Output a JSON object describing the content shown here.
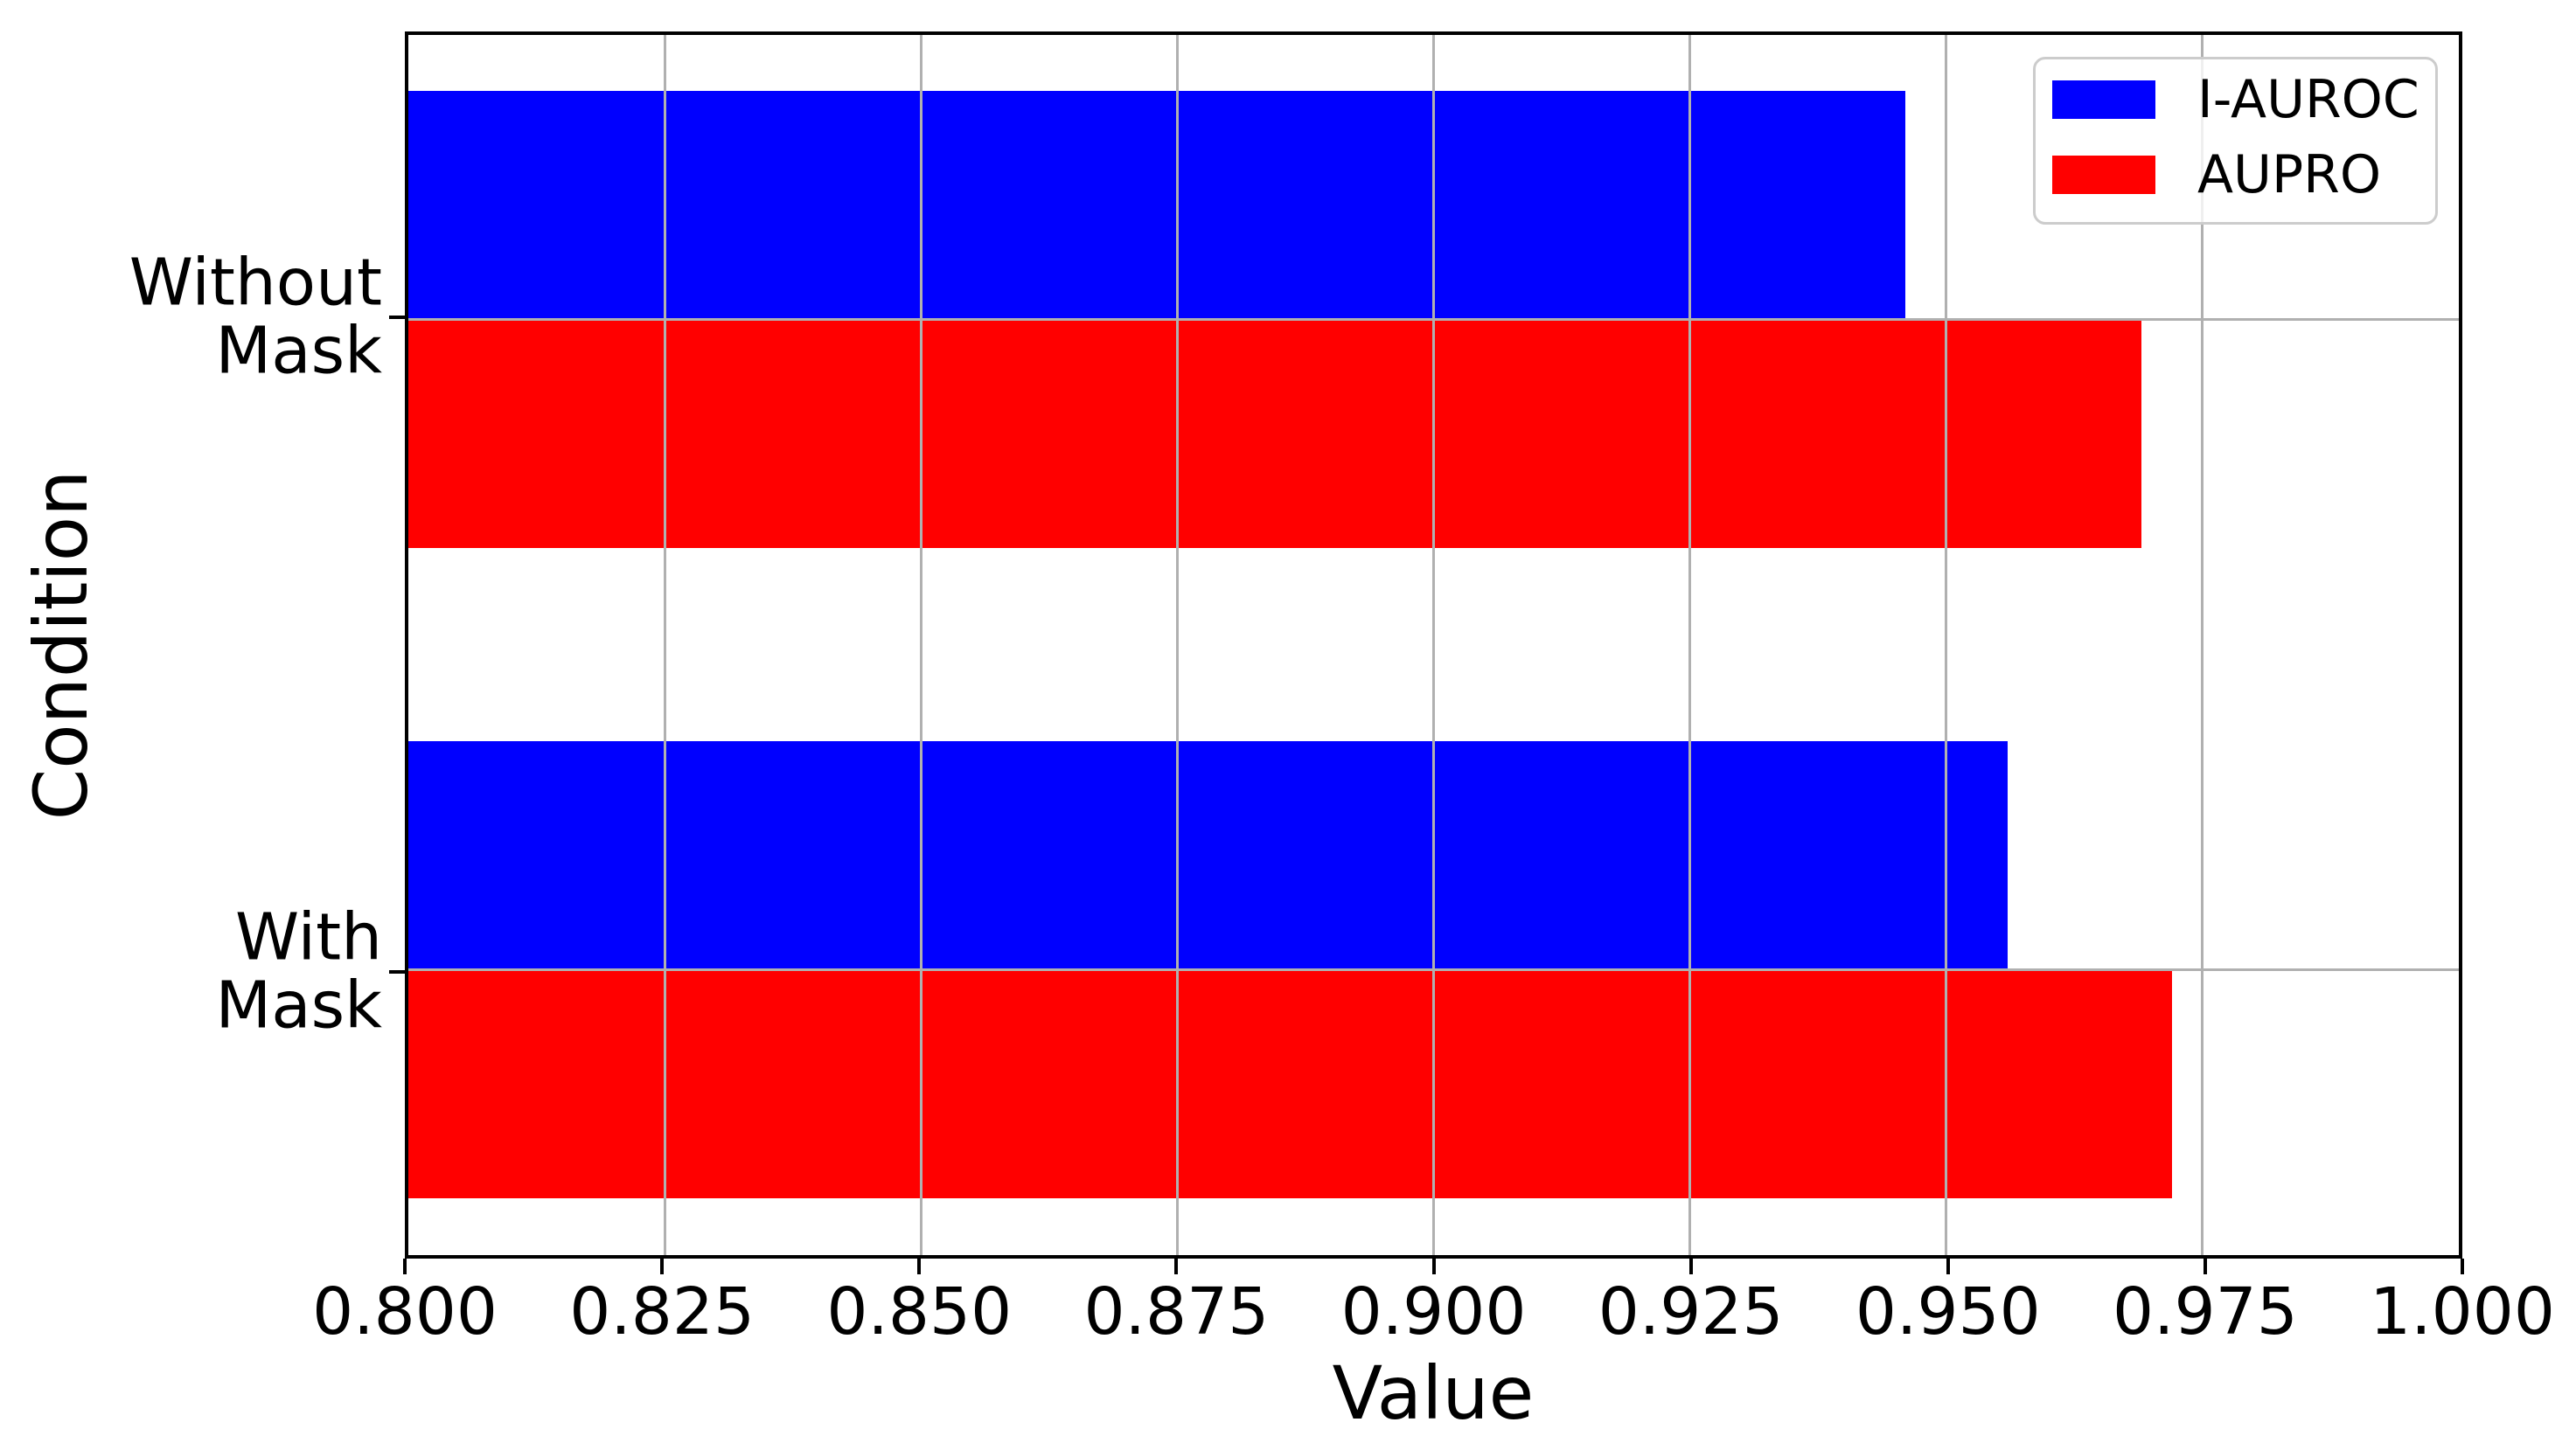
{
  "chart_data": {
    "type": "bar",
    "orientation": "horizontal",
    "xlabel": "Value",
    "ylabel": "Condition",
    "categories": [
      "Without\nMask",
      "With\nMask"
    ],
    "series": [
      {
        "name": "I-AUROC",
        "color": "#0000ff",
        "values": [
          0.946,
          0.956
        ]
      },
      {
        "name": "AUPRO",
        "color": "#ff0000",
        "values": [
          0.969,
          0.972
        ]
      }
    ],
    "xlim": [
      0.8,
      1.0
    ],
    "xtick_labels": [
      "0.800",
      "0.825",
      "0.850",
      "0.875",
      "0.900",
      "0.925",
      "0.950",
      "0.975",
      "1.000"
    ],
    "grid": true,
    "legend_position": "upper right",
    "colors": {
      "grid": "#b0b0b0",
      "spine": "#000000",
      "legend_border": "#cccccc",
      "background": "#ffffff"
    }
  }
}
